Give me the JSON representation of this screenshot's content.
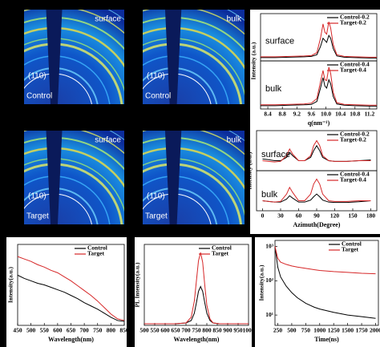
{
  "images": [
    {
      "labels": [
        "surface",
        "(110)",
        "Control"
      ]
    },
    {
      "labels": [
        "bulk",
        "(110)",
        "Control"
      ]
    },
    {
      "labels": [
        "surface",
        "(110)",
        "Target"
      ]
    },
    {
      "labels": [
        "bulk",
        "(110)",
        "Target"
      ]
    }
  ],
  "chart_data": [
    {
      "type": "line",
      "label": "surface",
      "x": [
        8.2,
        8.6,
        9.0,
        9.4,
        9.6,
        9.75,
        9.85,
        9.92,
        9.97,
        10.02,
        10.08,
        10.13,
        10.2,
        10.3,
        10.5,
        10.8,
        11.2,
        11.4
      ],
      "xlim": [
        8.2,
        11.4
      ],
      "ylim": [
        0,
        1.15
      ],
      "series": [
        {
          "name": "Control-0.2",
          "color": "#000000",
          "values": [
            0.08,
            0.08,
            0.09,
            0.1,
            0.11,
            0.15,
            0.35,
            0.55,
            0.5,
            0.45,
            0.62,
            0.55,
            0.3,
            0.12,
            0.09,
            0.08,
            0.07,
            0.07
          ]
        },
        {
          "name": "Target-0.2",
          "color": "#d62728",
          "values": [
            0.1,
            0.1,
            0.11,
            0.12,
            0.13,
            0.2,
            0.55,
            0.9,
            0.7,
            0.65,
            0.95,
            0.8,
            0.4,
            0.15,
            0.11,
            0.1,
            0.09,
            0.09
          ]
        }
      ]
    },
    {
      "type": "line",
      "label": "bulk",
      "ylabel": "Intensity (a.u.)",
      "xlabel": "q(nm⁻¹)",
      "x": [
        8.2,
        8.6,
        9.0,
        9.4,
        9.6,
        9.75,
        9.85,
        9.92,
        9.97,
        10.02,
        10.08,
        10.13,
        10.2,
        10.3,
        10.5,
        10.8,
        11.2,
        11.4
      ],
      "xlim": [
        8.2,
        11.4
      ],
      "ylim": [
        0,
        1.15
      ],
      "xticks": [
        8.4,
        8.8,
        9.2,
        9.6,
        {
          "value": 10.0,
          "label": "10.0"
        },
        10.4,
        10.8,
        11.2
      ],
      "series": [
        {
          "name": "Control-0.4",
          "color": "#000000",
          "values": [
            0.08,
            0.08,
            0.09,
            0.1,
            0.11,
            0.18,
            0.5,
            0.75,
            0.55,
            0.5,
            0.7,
            0.6,
            0.3,
            0.12,
            0.09,
            0.08,
            0.07,
            0.07
          ]
        },
        {
          "name": "Target-0.4",
          "color": "#d62728",
          "values": [
            0.1,
            0.1,
            0.11,
            0.12,
            0.14,
            0.25,
            0.65,
            0.92,
            0.7,
            0.68,
            1.0,
            0.85,
            0.4,
            0.15,
            0.11,
            0.1,
            0.09,
            0.09
          ]
        }
      ]
    },
    {
      "type": "line",
      "label": "surface",
      "x": [
        0,
        10,
        20,
        30,
        40,
        45,
        50,
        60,
        70,
        80,
        85,
        90,
        95,
        100,
        110,
        120,
        140,
        160,
        180
      ],
      "xlim": [
        -10,
        190
      ],
      "ylim": [
        0,
        1.2
      ],
      "series": [
        {
          "name": "Control-0.2",
          "color": "#000000",
          "values": [
            0.35,
            0.33,
            0.3,
            0.3,
            0.4,
            0.55,
            0.45,
            0.3,
            0.3,
            0.4,
            0.6,
            0.75,
            0.6,
            0.4,
            0.3,
            0.28,
            0.28,
            0.3,
            0.32
          ]
        },
        {
          "name": "Target-0.2",
          "color": "#d62728",
          "values": [
            0.3,
            0.28,
            0.26,
            0.28,
            0.45,
            0.65,
            0.5,
            0.3,
            0.3,
            0.45,
            0.75,
            0.9,
            0.75,
            0.45,
            0.3,
            0.28,
            0.28,
            0.3,
            0.3
          ]
        }
      ]
    },
    {
      "type": "line",
      "label": "bulk",
      "ylabel": "Intensity (a.u.)",
      "xlabel": "Azimuth(Degree)",
      "x": [
        0,
        10,
        20,
        30,
        40,
        45,
        50,
        60,
        70,
        80,
        85,
        90,
        95,
        100,
        110,
        120,
        140,
        160,
        180
      ],
      "xlim": [
        -10,
        190
      ],
      "ylim": [
        0,
        1.2
      ],
      "xticks": [
        0,
        30,
        60,
        90,
        120,
        150,
        180
      ],
      "series": [
        {
          "name": "Control-0.4",
          "color": "#000000",
          "values": [
            0.3,
            0.28,
            0.26,
            0.26,
            0.35,
            0.45,
            0.38,
            0.26,
            0.26,
            0.32,
            0.42,
            0.5,
            0.42,
            0.32,
            0.26,
            0.25,
            0.25,
            0.27,
            0.3
          ]
        },
        {
          "name": "Target-0.4",
          "color": "#d62728",
          "values": [
            0.3,
            0.28,
            0.26,
            0.28,
            0.5,
            0.7,
            0.55,
            0.3,
            0.3,
            0.5,
            0.8,
            0.95,
            0.8,
            0.5,
            0.3,
            0.28,
            0.28,
            0.3,
            0.3
          ]
        }
      ]
    },
    {
      "type": "line",
      "ylabel": "Intensity(a.u.)",
      "xlabel": "Wavelength(nm)",
      "x": [
        450,
        475,
        500,
        525,
        550,
        575,
        600,
        625,
        650,
        675,
        700,
        725,
        750,
        775,
        800,
        825,
        850
      ],
      "xlim": [
        450,
        850
      ],
      "ylim": [
        0,
        1
      ],
      "xticks": [
        450,
        500,
        550,
        600,
        650,
        700,
        750,
        800,
        850
      ],
      "series": [
        {
          "name": "Control",
          "color": "#000000",
          "values": [
            0.62,
            0.58,
            0.55,
            0.52,
            0.5,
            0.47,
            0.44,
            0.41,
            0.37,
            0.33,
            0.28,
            0.24,
            0.2,
            0.15,
            0.1,
            0.06,
            0.05
          ]
        },
        {
          "name": "Target",
          "color": "#d62728",
          "values": [
            0.85,
            0.82,
            0.79,
            0.75,
            0.72,
            0.68,
            0.65,
            0.6,
            0.55,
            0.49,
            0.43,
            0.37,
            0.3,
            0.22,
            0.14,
            0.08,
            0.06
          ]
        }
      ]
    },
    {
      "type": "line",
      "ylabel": "PL Intensity(a.u.)",
      "xlabel": "Wavelength(nm)",
      "x": [
        500,
        600,
        650,
        700,
        725,
        740,
        750,
        760,
        770,
        780,
        790,
        800,
        815,
        830,
        860,
        900,
        1000
      ],
      "xlim": [
        500,
        1000
      ],
      "ylim": [
        0,
        1
      ],
      "xticks": [
        500,
        550,
        600,
        650,
        700,
        750,
        800,
        850,
        900,
        950,
        1000
      ],
      "series": [
        {
          "name": "Control",
          "color": "#000000",
          "values": [
            0.02,
            0.02,
            0.02,
            0.03,
            0.06,
            0.15,
            0.28,
            0.42,
            0.48,
            0.42,
            0.28,
            0.15,
            0.06,
            0.03,
            0.02,
            0.02,
            0.02
          ]
        },
        {
          "name": "Target",
          "color": "#d62728",
          "values": [
            0.02,
            0.02,
            0.02,
            0.03,
            0.1,
            0.3,
            0.55,
            0.8,
            0.9,
            0.78,
            0.5,
            0.25,
            0.08,
            0.03,
            0.02,
            0.02,
            0.02
          ]
        }
      ]
    },
    {
      "type": "line",
      "ylabel": "Intensity(a.u.)",
      "xlabel": "Time(ns)",
      "log_y": true,
      "x": [
        200,
        250,
        300,
        400,
        500,
        600,
        750,
        900,
        1000,
        1250,
        1500,
        1750,
        2000
      ],
      "xlim": [
        200,
        2050
      ],
      "ylim": [
        5,
        1500
      ],
      "xticks": [
        250,
        500,
        750,
        1000,
        1250,
        1500,
        1750,
        2000
      ],
      "yticks": [
        {
          "value": 10,
          "label": "10¹"
        },
        {
          "value": 100,
          "label": "10²"
        },
        {
          "value": 1000,
          "label": "10³"
        }
      ],
      "series": [
        {
          "name": "Control",
          "color": "#000000",
          "values": [
            1000,
            250,
            130,
            70,
            45,
            32,
            22,
            17,
            15,
            12,
            10,
            9,
            8
          ]
        },
        {
          "name": "Target",
          "color": "#d62728",
          "values": [
            1000,
            450,
            350,
            300,
            270,
            250,
            230,
            210,
            200,
            185,
            175,
            165,
            160
          ]
        }
      ]
    }
  ]
}
